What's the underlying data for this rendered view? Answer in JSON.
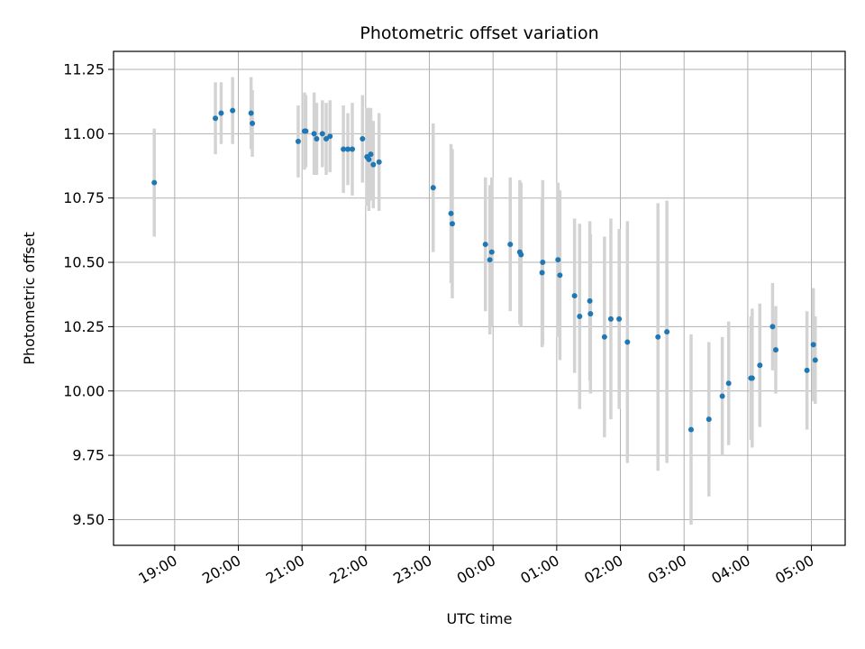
{
  "chart_data": {
    "type": "scatter",
    "title": "Photometric offset variation",
    "xlabel": "UTC time",
    "ylabel": "Photometric offset",
    "grid": true,
    "x_unit": "hours since 00:00 UTC",
    "xlim": [
      -5.96,
      5.53
    ],
    "ylim": [
      9.4,
      11.32
    ],
    "x_ticks": [
      {
        "value": -5,
        "label": "19:00"
      },
      {
        "value": -4,
        "label": "20:00"
      },
      {
        "value": -3,
        "label": "21:00"
      },
      {
        "value": -2,
        "label": "22:00"
      },
      {
        "value": -1,
        "label": "23:00"
      },
      {
        "value": 0,
        "label": "00:00"
      },
      {
        "value": 1,
        "label": "01:00"
      },
      {
        "value": 2,
        "label": "02:00"
      },
      {
        "value": 3,
        "label": "03:00"
      },
      {
        "value": 4,
        "label": "04:00"
      },
      {
        "value": 5,
        "label": "05:00"
      }
    ],
    "y_ticks": [
      {
        "value": 9.5,
        "label": "9.50"
      },
      {
        "value": 9.75,
        "label": "9.75"
      },
      {
        "value": 10.0,
        "label": "10.00"
      },
      {
        "value": 10.25,
        "label": "10.25"
      },
      {
        "value": 10.5,
        "label": "10.50"
      },
      {
        "value": 10.75,
        "label": "10.75"
      },
      {
        "value": 11.0,
        "label": "11.00"
      },
      {
        "value": 11.25,
        "label": "11.25"
      }
    ],
    "colors": {
      "point": "#1f77b4",
      "errorbar": "#d3d3d3",
      "grid": "#b0b0b0"
    },
    "series": [
      {
        "name": "offset",
        "points": [
          {
            "x": -5.32,
            "y": 10.81,
            "err": 0.21
          },
          {
            "x": -4.36,
            "y": 11.06,
            "err": 0.14
          },
          {
            "x": -4.27,
            "y": 11.08,
            "err": 0.12
          },
          {
            "x": -4.09,
            "y": 11.09,
            "err": 0.13
          },
          {
            "x": -3.8,
            "y": 11.08,
            "err": 0.14
          },
          {
            "x": -3.78,
            "y": 11.04,
            "err": 0.13
          },
          {
            "x": -3.06,
            "y": 10.97,
            "err": 0.14
          },
          {
            "x": -2.96,
            "y": 11.01,
            "err": 0.15
          },
          {
            "x": -2.94,
            "y": 11.01,
            "err": 0.14
          },
          {
            "x": -2.81,
            "y": 11.0,
            "err": 0.16
          },
          {
            "x": -2.77,
            "y": 10.98,
            "err": 0.14
          },
          {
            "x": -2.68,
            "y": 11.0,
            "err": 0.13
          },
          {
            "x": -2.62,
            "y": 10.98,
            "err": 0.14
          },
          {
            "x": -2.56,
            "y": 10.99,
            "err": 0.14
          },
          {
            "x": -2.35,
            "y": 10.94,
            "err": 0.17
          },
          {
            "x": -2.28,
            "y": 10.94,
            "err": 0.14
          },
          {
            "x": -2.21,
            "y": 10.94,
            "err": 0.18
          },
          {
            "x": -2.05,
            "y": 10.98,
            "err": 0.17
          },
          {
            "x": -1.98,
            "y": 10.91,
            "err": 0.19
          },
          {
            "x": -1.95,
            "y": 10.9,
            "err": 0.2
          },
          {
            "x": -1.92,
            "y": 10.92,
            "err": 0.18
          },
          {
            "x": -1.88,
            "y": 10.88,
            "err": 0.17
          },
          {
            "x": -1.79,
            "y": 10.89,
            "err": 0.19
          },
          {
            "x": -0.94,
            "y": 10.79,
            "err": 0.25
          },
          {
            "x": -0.66,
            "y": 10.69,
            "err": 0.27
          },
          {
            "x": -0.64,
            "y": 10.65,
            "err": 0.29
          },
          {
            "x": -0.12,
            "y": 10.57,
            "err": 0.26
          },
          {
            "x": -0.05,
            "y": 10.51,
            "err": 0.29
          },
          {
            "x": -0.02,
            "y": 10.54,
            "err": 0.29
          },
          {
            "x": 0.27,
            "y": 10.57,
            "err": 0.26
          },
          {
            "x": 0.42,
            "y": 10.54,
            "err": 0.28
          },
          {
            "x": 0.44,
            "y": 10.53,
            "err": 0.28
          },
          {
            "x": 0.77,
            "y": 10.46,
            "err": 0.29
          },
          {
            "x": 0.78,
            "y": 10.5,
            "err": 0.32
          },
          {
            "x": 1.02,
            "y": 10.51,
            "err": 0.3
          },
          {
            "x": 1.05,
            "y": 10.45,
            "err": 0.33
          },
          {
            "x": 1.28,
            "y": 10.37,
            "err": 0.3
          },
          {
            "x": 1.36,
            "y": 10.29,
            "err": 0.36
          },
          {
            "x": 1.52,
            "y": 10.35,
            "err": 0.31
          },
          {
            "x": 1.53,
            "y": 10.3,
            "err": 0.31
          },
          {
            "x": 1.75,
            "y": 10.21,
            "err": 0.39
          },
          {
            "x": 1.85,
            "y": 10.28,
            "err": 0.39
          },
          {
            "x": 1.98,
            "y": 10.28,
            "err": 0.35
          },
          {
            "x": 2.11,
            "y": 10.19,
            "err": 0.47
          },
          {
            "x": 2.59,
            "y": 10.21,
            "err": 0.52
          },
          {
            "x": 2.73,
            "y": 10.23,
            "err": 0.51
          },
          {
            "x": 3.11,
            "y": 9.85,
            "err": 0.37
          },
          {
            "x": 3.39,
            "y": 9.89,
            "err": 0.3
          },
          {
            "x": 3.6,
            "y": 9.98,
            "err": 0.23
          },
          {
            "x": 3.7,
            "y": 10.03,
            "err": 0.24
          },
          {
            "x": 4.05,
            "y": 10.05,
            "err": 0.24
          },
          {
            "x": 4.07,
            "y": 10.05,
            "err": 0.27
          },
          {
            "x": 4.19,
            "y": 10.1,
            "err": 0.24
          },
          {
            "x": 4.39,
            "y": 10.25,
            "err": 0.17
          },
          {
            "x": 4.44,
            "y": 10.16,
            "err": 0.17
          },
          {
            "x": 4.93,
            "y": 10.08,
            "err": 0.23
          },
          {
            "x": 5.03,
            "y": 10.18,
            "err": 0.22
          },
          {
            "x": 5.06,
            "y": 10.12,
            "err": 0.17
          }
        ]
      }
    ]
  }
}
